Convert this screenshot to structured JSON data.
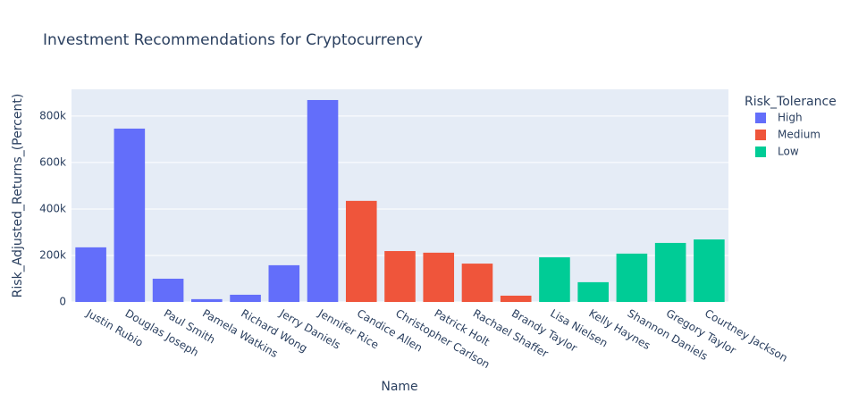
{
  "chart_data": {
    "type": "bar",
    "title": "Investment Recommendations for Cryptocurrency",
    "xlabel": "Name",
    "ylabel": "Risk_Adjusted_Returns_(Percent)",
    "legend_title": "Risk_Tolerance",
    "legend_position": "right",
    "grid": true,
    "categories": [
      "Justin Rubio",
      "Douglas Joseph",
      "Paul Smith",
      "Pamela Watkins",
      "Richard Wong",
      "Jerry Daniels",
      "Jennifer Rice",
      "Candice Allen",
      "Christopher Carlson",
      "Patrick Holt",
      "Rachael Shaffer",
      "Brandy Taylor",
      "Lisa Nielsen",
      "Kelly Haynes",
      "Shannon Daniels",
      "Gregory Taylor",
      "Courtney Jackson"
    ],
    "series": [
      {
        "name": "High",
        "color": "#636efa",
        "values": [
          235000,
          746000,
          100000,
          12000,
          31000,
          158000,
          869000,
          null,
          null,
          null,
          null,
          null,
          null,
          null,
          null,
          null,
          null
        ]
      },
      {
        "name": "Medium",
        "color": "#ef553b",
        "values": [
          null,
          null,
          null,
          null,
          null,
          null,
          null,
          435000,
          219000,
          212000,
          165000,
          27000,
          null,
          null,
          null,
          null,
          null
        ]
      },
      {
        "name": "Low",
        "color": "#00cc96",
        "values": [
          null,
          null,
          null,
          null,
          null,
          null,
          null,
          null,
          null,
          null,
          null,
          null,
          192000,
          85000,
          208000,
          254000,
          269000
        ]
      }
    ],
    "ylim": [
      0,
      915000
    ],
    "yticks": [
      0,
      {
        "value": 200000,
        "label": "200k"
      },
      {
        "value": 400000,
        "label": "400k"
      },
      {
        "value": 600000,
        "label": "600k"
      },
      {
        "value": 800000,
        "label": "800k"
      }
    ]
  }
}
